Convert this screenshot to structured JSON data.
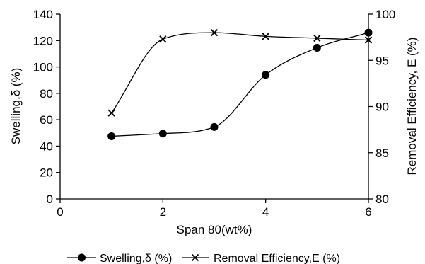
{
  "chart_data": {
    "type": "line",
    "title": "",
    "xlabel": "Span 80(wt%)",
    "ylabel_left": "Swelling,δ (%)",
    "ylabel_right": "Removal Efficiency, E (%)",
    "xlim": [
      0,
      6
    ],
    "ylim_left": [
      0,
      140
    ],
    "ylim_right": [
      80,
      100
    ],
    "x_ticks": [
      "0",
      "2",
      "4",
      "6"
    ],
    "y_ticks_left": [
      "0",
      "20",
      "40",
      "60",
      "80",
      "100",
      "120",
      "140"
    ],
    "y_ticks_right": [
      "80",
      "85",
      "90",
      "95",
      "100"
    ],
    "grid": false,
    "legend_position": "bottom",
    "series": [
      {
        "name": "Swelling,δ  (%)",
        "axis": "left",
        "marker": "circle",
        "color": "#000000",
        "x": [
          1,
          2,
          3,
          4,
          5,
          6
        ],
        "values": [
          47.5,
          49.5,
          54.5,
          94,
          114.5,
          126
        ]
      },
      {
        "name": "Removal Efficiency,E (%)",
        "axis": "right",
        "marker": "x",
        "color": "#000000",
        "x": [
          1,
          2,
          3,
          4,
          5,
          6
        ],
        "values": [
          89.3,
          97.3,
          98.0,
          97.6,
          97.4,
          97.2
        ]
      }
    ]
  }
}
